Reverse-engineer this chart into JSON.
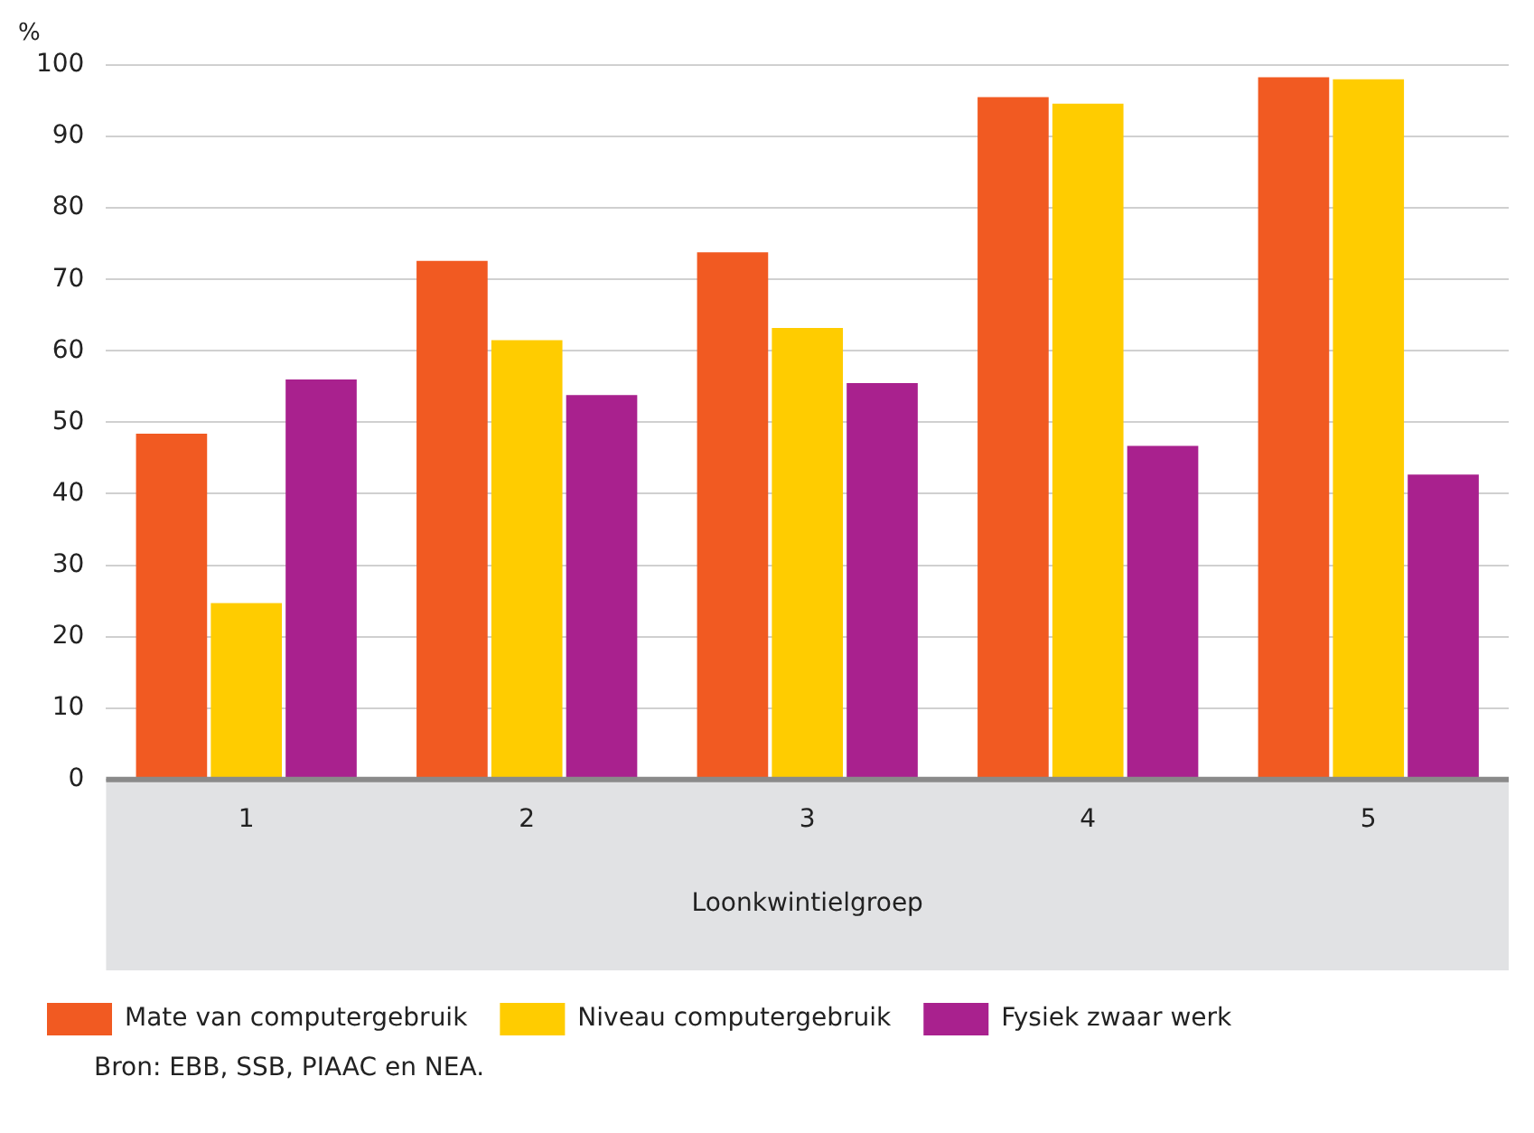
{
  "chart_data": {
    "type": "bar",
    "ylabel": "%",
    "xlabel": "Loonkwintielgroep",
    "categories": [
      "1",
      "2",
      "3",
      "4",
      "5"
    ],
    "series": [
      {
        "name": "Mate van computergebruik",
        "color": "#f15a22",
        "values": [
          48.4,
          72.6,
          73.8,
          95.5,
          98.3
        ]
      },
      {
        "name": "Niveau computergebruik",
        "color": "#ffcc00",
        "values": [
          24.7,
          61.5,
          63.2,
          94.6,
          98.0
        ]
      },
      {
        "name": "Fysiek zwaar werk",
        "color": "#a9218e",
        "values": [
          56.0,
          53.8,
          55.5,
          46.7,
          42.7
        ]
      }
    ],
    "ylim": [
      0,
      100
    ],
    "yticks": [
      0,
      10,
      20,
      30,
      40,
      50,
      60,
      70,
      80,
      90,
      100
    ],
    "grid": "y",
    "legend": "bottom",
    "annotations": [
      "Bron: EBB, SSB, PIAAC en NEA."
    ]
  }
}
